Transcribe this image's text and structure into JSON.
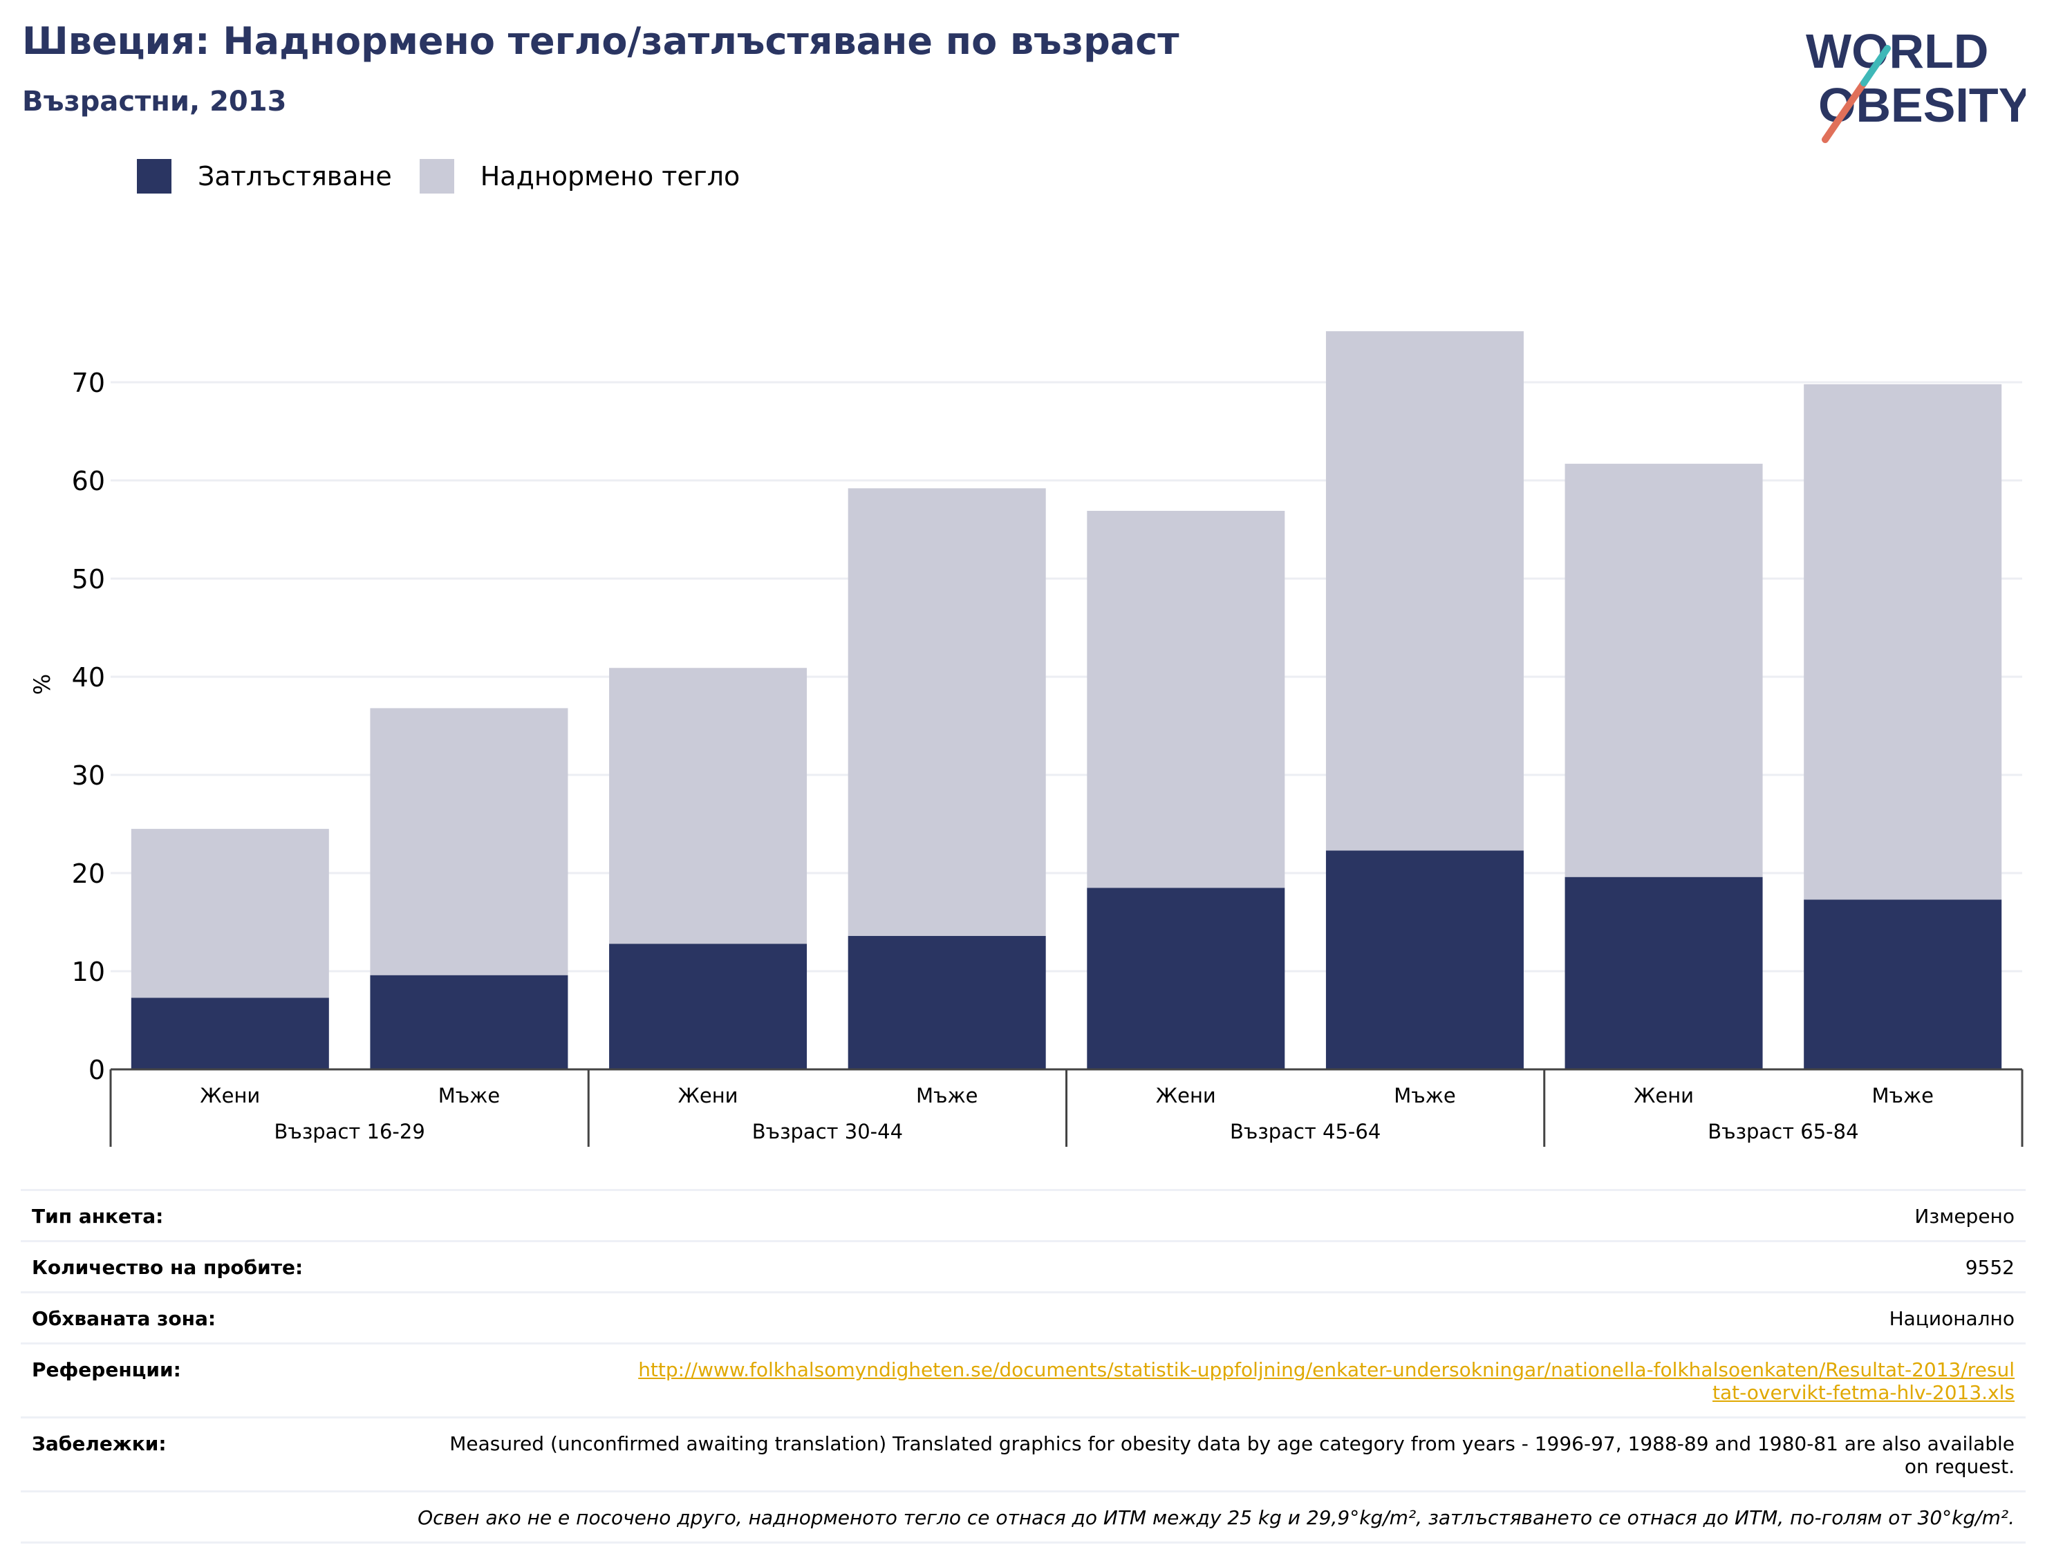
{
  "title": "Швеция: Наднормено тегло/затлъстяване по възраст",
  "subtitle": "Възрастни, 2013",
  "logo": {
    "line1": "WORLD",
    "line2": "OBESITY"
  },
  "legend": [
    {
      "label": "Затлъстяване",
      "color": "#2a3562"
    },
    {
      "label": "Наднормено тегло",
      "color": "#cacbd8"
    }
  ],
  "chart_data": {
    "type": "bar",
    "stacked": true,
    "ylabel": "%",
    "ylim": [
      0,
      75
    ],
    "yticks": [
      0,
      10,
      20,
      30,
      40,
      50,
      60,
      70
    ],
    "grid": true,
    "legend_position": "top-left",
    "categories": [
      "Жени",
      "Мъже",
      "Жени",
      "Мъже",
      "Жени",
      "Мъже",
      "Жени",
      "Мъже"
    ],
    "groups": [
      {
        "label": "Възраст 16-29",
        "span": [
          0,
          1
        ]
      },
      {
        "label": "Възраст 30-44",
        "span": [
          2,
          3
        ]
      },
      {
        "label": "Възраст 45-64",
        "span": [
          4,
          5
        ]
      },
      {
        "label": "Възраст 65-84",
        "span": [
          6,
          7
        ]
      }
    ],
    "series": [
      {
        "name": "Затлъстяване",
        "color": "#2a3562",
        "values": [
          7.3,
          9.6,
          12.8,
          13.6,
          18.5,
          22.3,
          19.6,
          17.3
        ]
      },
      {
        "name": "Наднормено тегло",
        "color": "#cacbd8",
        "values": [
          17.2,
          27.2,
          28.1,
          45.6,
          38.4,
          52.9,
          42.1,
          52.5
        ]
      }
    ]
  },
  "info": {
    "survey_type": {
      "label": "Тип анкета:",
      "value": "Измерено"
    },
    "sample_size": {
      "label": "Количество на пробите:",
      "value": "9552"
    },
    "area": {
      "label": "Обхваната зона:",
      "value": "Национално"
    },
    "references": {
      "label": "Референции:",
      "value": "http://www.folkhalsomyndigheten.se/documents/statistik-uppfoljning/enkater-undersokningar/nationella-folkhalsoenkaten/Resultat-2013/resultat-overvikt-fetma-hlv-2013.xls"
    },
    "notes": {
      "label": "Забележки:",
      "value": "Measured (unconfirmed awaiting translation) Translated graphics for obesity data by age category from years - 1996-97, 1988-89 and 1980-81 are also available on request."
    },
    "footnote": "Освен ако не е посочено друго, наднорменото тегло се отнася до ИТМ между 25 kg и 29,9°kg/m², затлъстяването се отнася до ИТМ, по-голям от 30°kg/m²."
  }
}
